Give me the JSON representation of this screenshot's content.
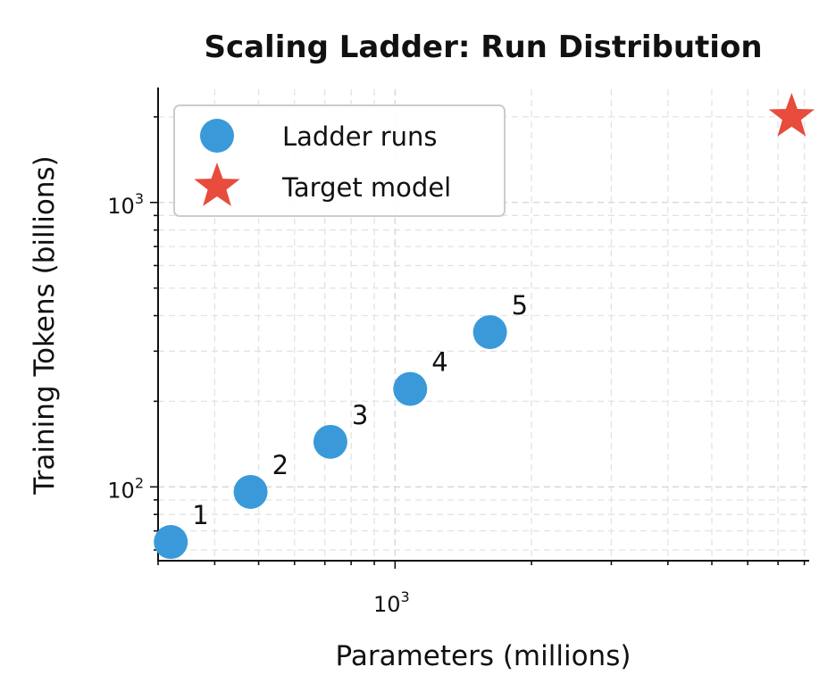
{
  "chart_data": {
    "type": "scatter",
    "title": "Scaling Ladder: Run Distribution",
    "xlabel": "Parameters (millions)",
    "ylabel": "Training Tokens (billions)",
    "xscale": "log",
    "yscale": "log",
    "xlim": [
      300,
      8200
    ],
    "ylim": [
      55,
      2500
    ],
    "grid": "on (major and minor, dashed)",
    "legend_placement": "upper-left",
    "x_ticks": [
      {
        "base": "10",
        "exp": "3",
        "value": 1000
      }
    ],
    "y_ticks": [
      {
        "base": "10",
        "exp": "2",
        "value": 100
      },
      {
        "base": "10",
        "exp": "3",
        "value": 1000
      }
    ],
    "series": [
      {
        "name": "Ladder runs",
        "marker": "circle",
        "color": "#3a9ad9",
        "points": [
          {
            "label": "1",
            "x": 320,
            "y": 64
          },
          {
            "label": "2",
            "x": 480,
            "y": 96
          },
          {
            "label": "3",
            "x": 720,
            "y": 144
          },
          {
            "label": "4",
            "x": 1080,
            "y": 221
          },
          {
            "label": "5",
            "x": 1620,
            "y": 350
          }
        ]
      },
      {
        "name": "Target model",
        "marker": "star",
        "color": "#e74c3c",
        "points": [
          {
            "label": "",
            "x": 7500,
            "y": 2000
          }
        ]
      }
    ]
  }
}
